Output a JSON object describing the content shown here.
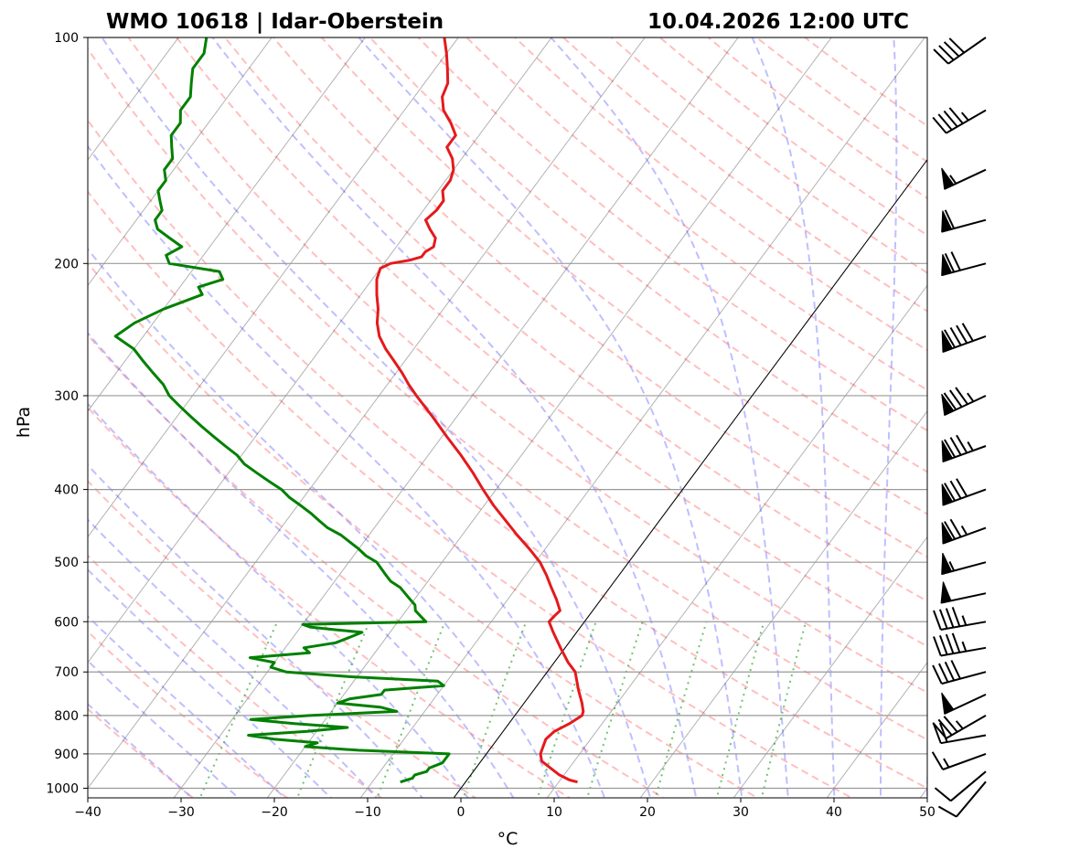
{
  "chart_data": {
    "type": "skew-t",
    "title_left": "WMO 10618 | Idar-Oberstein",
    "title_right": "10.04.2026 12:00 UTC",
    "xlabel": "°C",
    "ylabel": "hPa",
    "xlim": [
      -40,
      50
    ],
    "ylim": [
      1050,
      100
    ],
    "x_ticks": [
      -40,
      -30,
      -20,
      -10,
      0,
      10,
      20,
      30,
      40,
      50
    ],
    "x_tick_labels": [
      "−40",
      "−30",
      "−20",
      "−10",
      "0",
      "10",
      "20",
      "30",
      "40",
      "50"
    ],
    "p_ticks": [
      1000,
      900,
      800,
      700,
      600,
      500,
      400,
      300,
      200,
      100
    ],
    "p_tick_labels": [
      "1000",
      "900",
      "800",
      "700",
      "600",
      "500",
      "400",
      "300",
      "200",
      "100"
    ],
    "colors": {
      "temperature": "#e41a1c",
      "dewpoint": "#008000",
      "dry_adiabats": "#ff8080",
      "moist_adiabats": "#8080ff",
      "mixing_ratio": "#33aa33",
      "isotherms": "#000000",
      "grid": "#999999"
    },
    "temperature": {
      "name": "Temperature",
      "p": [
        981,
        975,
        960,
        940,
        920,
        900,
        880,
        860,
        840,
        820,
        800,
        790,
        770,
        740,
        700,
        680,
        650,
        620,
        600,
        590,
        580,
        560,
        540,
        520,
        500,
        480,
        460,
        440,
        420,
        400,
        380,
        360,
        340,
        320,
        300,
        290,
        280,
        270,
        260,
        250,
        240,
        230,
        220,
        210,
        203,
        200,
        198,
        196,
        193,
        190,
        185,
        180,
        175,
        170,
        165,
        160,
        155,
        150,
        145,
        140,
        135,
        130,
        125,
        120,
        115,
        110,
        105,
        100
      ],
      "t": [
        12,
        11,
        9.5,
        8,
        6.5,
        5.8,
        5.5,
        5.2,
        5.5,
        6.5,
        7.2,
        7.0,
        6.2,
        4.8,
        3.0,
        1.5,
        -0.5,
        -2.5,
        -3.8,
        -3.7,
        -3.5,
        -4.8,
        -6.3,
        -7.8,
        -9.5,
        -11.7,
        -14.1,
        -16.5,
        -19,
        -21.4,
        -23.8,
        -26.5,
        -29.5,
        -32.6,
        -36,
        -37.7,
        -39.3,
        -41.1,
        -43,
        -44.7,
        -46,
        -47,
        -48.3,
        -49.5,
        -50,
        -49.3,
        -47.5,
        -46.5,
        -46.5,
        -46,
        -46.5,
        -47.8,
        -49,
        -48.6,
        -48.6,
        -49.5,
        -49.5,
        -50,
        -51,
        -52.5,
        -52.5,
        -54,
        -55.8,
        -57,
        -57.5,
        -58.7,
        -60,
        -61.5
      ]
    },
    "dewpoint": {
      "name": "Dew point",
      "p": [
        981,
        970,
        960,
        950,
        940,
        925,
        910,
        900,
        890,
        880,
        870,
        860,
        850,
        840,
        830,
        820,
        810,
        800,
        790,
        780,
        770,
        760,
        750,
        740,
        730,
        720,
        710,
        700,
        690,
        680,
        670,
        660,
        650,
        640,
        630,
        620,
        615,
        610,
        605,
        600,
        590,
        580,
        570,
        560,
        550,
        540,
        530,
        520,
        510,
        500,
        490,
        480,
        470,
        460,
        450,
        440,
        430,
        420,
        410,
        400,
        390,
        380,
        370,
        360,
        350,
        340,
        330,
        320,
        310,
        300,
        290,
        280,
        270,
        260,
        250,
        240,
        230,
        220,
        215,
        210,
        205,
        200,
        195,
        190,
        185,
        180,
        175,
        170,
        165,
        160,
        155,
        150,
        145,
        140,
        135,
        130,
        125,
        120,
        115,
        110,
        105,
        100
      ],
      "td": [
        -7,
        -6,
        -6,
        -5,
        -5,
        -4,
        -4,
        -4,
        -14,
        -20,
        -19,
        -24,
        -27,
        -21,
        -17,
        -23,
        -28,
        -22,
        -13,
        -15,
        -20,
        -19,
        -16,
        -16,
        -10,
        -11,
        -21,
        -28,
        -30,
        -30,
        -33,
        -27,
        -28,
        -25,
        -24,
        -23,
        -26,
        -29,
        -30,
        -17,
        -18,
        -19,
        -19.5,
        -20.5,
        -21.5,
        -22.5,
        -24,
        -25,
        -26,
        -27,
        -28.7,
        -30,
        -31.5,
        -33,
        -35,
        -36.5,
        -38,
        -39.7,
        -41.5,
        -43,
        -45,
        -47,
        -49,
        -50.5,
        -52.5,
        -54.5,
        -56.5,
        -58.5,
        -60.5,
        -62.5,
        -64,
        -66,
        -68,
        -70,
        -73,
        -72,
        -70,
        -67,
        -68,
        -66,
        -67,
        -73,
        -74,
        -73,
        -75,
        -77,
        -78,
        -78,
        -79,
        -80,
        -80,
        -81,
        -81,
        -82,
        -83,
        -83,
        -84,
        -84,
        -85,
        -86,
        -86,
        -87
      ]
    },
    "wind_barbs": {
      "p": [
        980,
        950,
        900,
        850,
        800,
        750,
        700,
        650,
        600,
        550,
        500,
        450,
        400,
        350,
        300,
        250,
        200,
        175,
        150,
        125,
        100
      ],
      "speed_kt": [
        10,
        10,
        15,
        20,
        35,
        50,
        40,
        45,
        45,
        50,
        55,
        75,
        80,
        85,
        85,
        90,
        70,
        60,
        55,
        45,
        40
      ],
      "direction_deg": [
        220,
        230,
        250,
        260,
        240,
        245,
        255,
        260,
        260,
        258,
        255,
        250,
        250,
        250,
        245,
        250,
        255,
        255,
        245,
        240,
        235
      ]
    }
  }
}
